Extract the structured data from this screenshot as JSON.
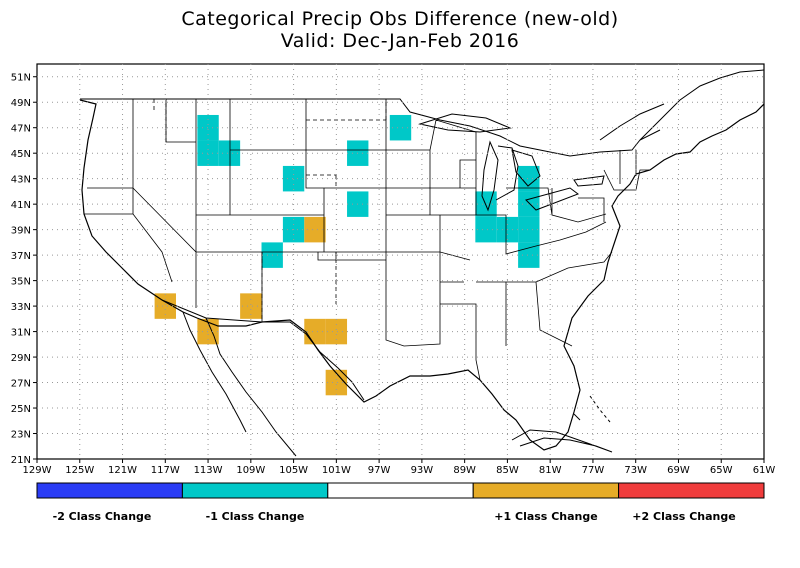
{
  "title": "Categorical Precip Obs Difference (new-old)",
  "subtitle": "Valid: Dec-Jan-Feb 2016",
  "map": {
    "projection": "lat-lon",
    "lon_range": [
      -129,
      -61
    ],
    "lat_range": [
      21,
      52
    ],
    "x_ticks": [
      "129W",
      "125W",
      "121W",
      "117W",
      "113W",
      "109W",
      "105W",
      "101W",
      "97W",
      "93W",
      "89W",
      "85W",
      "81W",
      "77W",
      "73W",
      "69W",
      "65W",
      "61W"
    ],
    "y_ticks": [
      "51N",
      "49N",
      "47N",
      "45N",
      "43N",
      "41N",
      "39N",
      "37N",
      "35N",
      "33N",
      "31N",
      "29N",
      "27N",
      "25N",
      "23N",
      "21N"
    ],
    "grid": "dotted",
    "cell_size_deg": 2
  },
  "colors": {
    "minus2": "#2a3cf5",
    "minus1": "#00c8c8",
    "zero": "#ffffff",
    "plus1": "#e6ac28",
    "plus2": "#f03c3c",
    "border": "#000000",
    "grid": "#999999"
  },
  "cells": [
    {
      "lon": -113,
      "lat": 47,
      "value": -1
    },
    {
      "lon": -113,
      "lat": 45,
      "value": -1
    },
    {
      "lon": -111,
      "lat": 45,
      "value": -1
    },
    {
      "lon": -105,
      "lat": 43,
      "value": -1
    },
    {
      "lon": -99,
      "lat": 45,
      "value": -1
    },
    {
      "lon": -99,
      "lat": 41,
      "value": -1
    },
    {
      "lon": -95,
      "lat": 47,
      "value": -1
    },
    {
      "lon": -105,
      "lat": 39,
      "value": -1
    },
    {
      "lon": -107,
      "lat": 37,
      "value": -1
    },
    {
      "lon": -87,
      "lat": 41,
      "value": -1
    },
    {
      "lon": -87,
      "lat": 39,
      "value": -1
    },
    {
      "lon": -85,
      "lat": 39,
      "value": -1
    },
    {
      "lon": -83,
      "lat": 43,
      "value": -1
    },
    {
      "lon": -83,
      "lat": 41,
      "value": -1
    },
    {
      "lon": -83,
      "lat": 39,
      "value": -1
    },
    {
      "lon": -83,
      "lat": 37,
      "value": -1
    },
    {
      "lon": -103,
      "lat": 39,
      "value": 1
    },
    {
      "lon": -117,
      "lat": 33,
      "value": 1
    },
    {
      "lon": -109,
      "lat": 33,
      "value": 1
    },
    {
      "lon": -113,
      "lat": 31,
      "value": 1
    },
    {
      "lon": -103,
      "lat": 31,
      "value": 1
    },
    {
      "lon": -101,
      "lat": 31,
      "value": 1
    },
    {
      "lon": -101,
      "lat": 27,
      "value": 1
    }
  ],
  "legend": {
    "labels": [
      "-2 Class Change",
      "-1 Class Change",
      "+1 Class Change",
      "+2 Class Change"
    ]
  }
}
